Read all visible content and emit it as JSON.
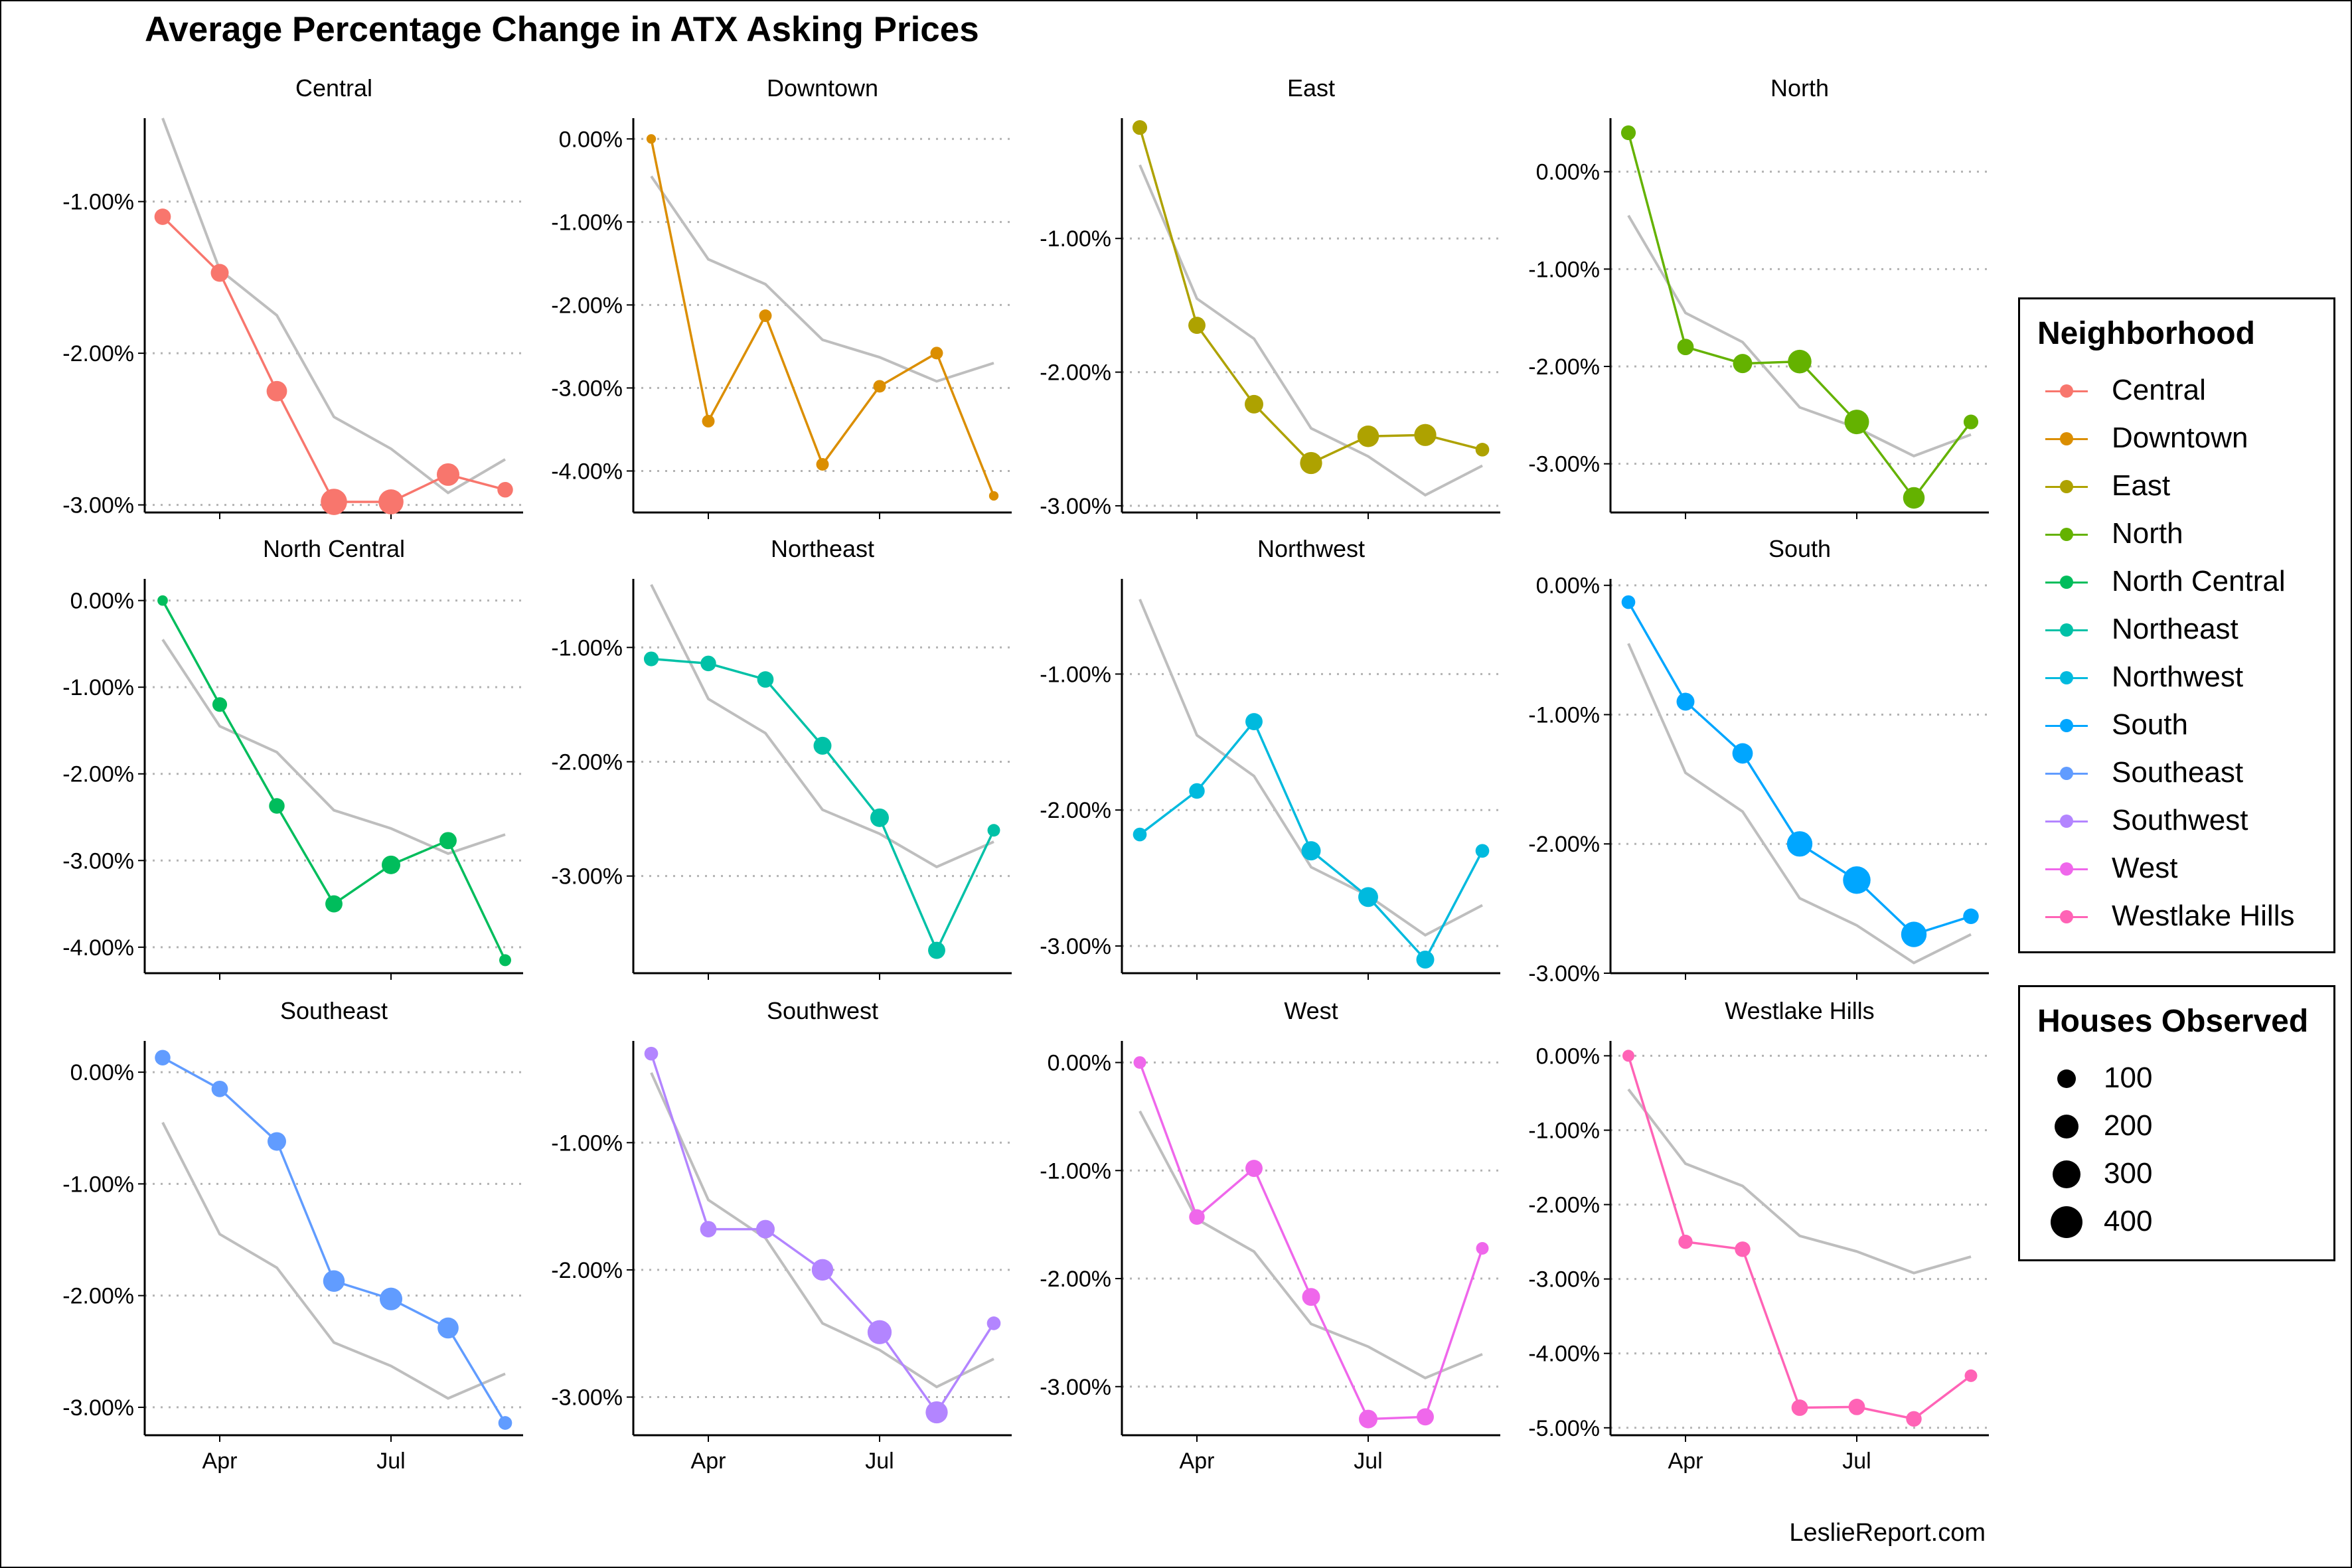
{
  "title": "Average Percentage Change in ATX Asking Prices",
  "caption": "LeslieReport.com",
  "legend_neighborhood": {
    "title": "Neighborhood",
    "items": [
      {
        "label": "Central",
        "color": "#F8766D"
      },
      {
        "label": "Downtown",
        "color": "#DB8E00"
      },
      {
        "label": "East",
        "color": "#AEA200"
      },
      {
        "label": "North",
        "color": "#64B200"
      },
      {
        "label": "North Central",
        "color": "#00BD5C"
      },
      {
        "label": "Northeast",
        "color": "#00C1A7"
      },
      {
        "label": "Northwest",
        "color": "#00BADE"
      },
      {
        "label": "South",
        "color": "#00A6FF"
      },
      {
        "label": "Southeast",
        "color": "#619CFF"
      },
      {
        "label": "Southwest",
        "color": "#B385FF"
      },
      {
        "label": "West",
        "color": "#EF67EB"
      },
      {
        "label": "Westlake Hills",
        "color": "#FF63B6"
      }
    ]
  },
  "legend_size": {
    "title": "Houses Observed",
    "items": [
      {
        "label": "100",
        "value": 100
      },
      {
        "label": "200",
        "value": 200
      },
      {
        "label": "300",
        "value": 300
      },
      {
        "label": "400",
        "value": 400
      }
    ]
  },
  "chart_data": {
    "type": "line",
    "x_labels": [
      "Apr",
      "Jul"
    ],
    "x": [
      "Mar",
      "Apr",
      "May",
      "Jun",
      "Jul",
      "Aug",
      "Sep"
    ],
    "reference_line": {
      "color": "#BEBEBE",
      "values": [
        -0.45,
        -1.45,
        -1.75,
        -2.42,
        -2.63,
        -2.92,
        -2.7
      ]
    },
    "panels": [
      {
        "name": "Central",
        "color": "#F8766D",
        "ylim": [
          -3.05,
          -0.45
        ],
        "yticks": [
          -1,
          -2,
          -3
        ],
        "values": [
          -1.1,
          -1.47,
          -2.25,
          -2.98,
          -2.98,
          -2.8,
          -2.9
        ],
        "sizes": [
          70,
          90,
          130,
          250,
          220,
          170,
          60
        ]
      },
      {
        "name": "Downtown",
        "color": "#DB8E00",
        "ylim": [
          -4.5,
          0.25
        ],
        "yticks": [
          0,
          -1,
          -2,
          -3,
          -4
        ],
        "values": [
          0.0,
          -3.4,
          -2.13,
          -3.92,
          -2.98,
          -2.58,
          -4.3
        ],
        "sizes": [
          10,
          30,
          30,
          30,
          30,
          30,
          10
        ]
      },
      {
        "name": "East",
        "color": "#AEA200",
        "ylim": [
          -3.05,
          -0.1
        ],
        "yticks": [
          -1,
          -2,
          -3
        ],
        "values": [
          -0.17,
          -1.65,
          -2.24,
          -2.68,
          -2.48,
          -2.47,
          -2.58
        ],
        "sizes": [
          50,
          80,
          100,
          160,
          150,
          160,
          40
        ]
      },
      {
        "name": "North",
        "color": "#64B200",
        "ylim": [
          -3.5,
          0.55
        ],
        "yticks": [
          0,
          -1,
          -2,
          -3
        ],
        "values": [
          0.4,
          -1.8,
          -1.97,
          -1.95,
          -2.57,
          -3.35,
          -2.57
        ],
        "sizes": [
          50,
          70,
          110,
          190,
          210,
          150,
          50
        ]
      },
      {
        "name": "North Central",
        "color": "#00BD5C",
        "ylim": [
          -4.3,
          0.25
        ],
        "yticks": [
          0,
          -1,
          -2,
          -3,
          -4
        ],
        "values": [
          0.0,
          -1.2,
          -2.37,
          -3.5,
          -3.05,
          -2.77,
          -4.15
        ],
        "sizes": [
          15,
          50,
          60,
          80,
          100,
          80,
          25
        ]
      },
      {
        "name": "Northeast",
        "color": "#00C1A7",
        "ylim": [
          -3.85,
          -0.4
        ],
        "yticks": [
          -1,
          -2,
          -3
        ],
        "values": [
          -1.1,
          -1.14,
          -1.28,
          -1.86,
          -2.49,
          -3.65,
          -2.6
        ],
        "sizes": [
          50,
          60,
          70,
          90,
          100,
          80,
          30
        ]
      },
      {
        "name": "Northwest",
        "color": "#00BADE",
        "ylim": [
          -3.2,
          -0.3
        ],
        "yticks": [
          -1,
          -2,
          -3
        ],
        "values": [
          -2.18,
          -1.86,
          -1.35,
          -2.3,
          -2.64,
          -3.1,
          -2.3
        ],
        "sizes": [
          40,
          60,
          80,
          110,
          120,
          90,
          40
        ]
      },
      {
        "name": "South",
        "color": "#00A6FF",
        "ylim": [
          -3.0,
          0.05
        ],
        "yticks": [
          0,
          -1,
          -2,
          -3
        ],
        "values": [
          -0.13,
          -0.9,
          -1.3,
          -2.0,
          -2.28,
          -2.7,
          -2.56
        ],
        "sizes": [
          40,
          90,
          130,
          230,
          280,
          230,
          60
        ]
      },
      {
        "name": "Southeast",
        "color": "#619CFF",
        "ylim": [
          -3.25,
          0.28
        ],
        "yticks": [
          0,
          -1,
          -2,
          -3
        ],
        "values": [
          0.13,
          -0.15,
          -0.62,
          -1.87,
          -2.03,
          -2.29,
          -3.14
        ],
        "sizes": [
          60,
          70,
          100,
          150,
          170,
          140,
          40
        ]
      },
      {
        "name": "Southwest",
        "color": "#B385FF",
        "ylim": [
          -3.3,
          -0.2
        ],
        "yticks": [
          -1,
          -2,
          -3
        ],
        "values": [
          -0.3,
          -1.68,
          -1.68,
          -2.0,
          -2.49,
          -3.12,
          -2.42
        ],
        "sizes": [
          40,
          70,
          100,
          150,
          200,
          160,
          40
        ]
      },
      {
        "name": "West",
        "color": "#EF67EB",
        "ylim": [
          -3.45,
          0.2
        ],
        "yticks": [
          0,
          -1,
          -2,
          -3
        ],
        "values": [
          0.0,
          -1.43,
          -0.98,
          -2.17,
          -3.3,
          -3.28,
          -1.72
        ],
        "sizes": [
          30,
          60,
          80,
          90,
          100,
          80,
          30
        ]
      },
      {
        "name": "Westlake Hills",
        "color": "#FF63B6",
        "ylim": [
          -5.1,
          0.2
        ],
        "yticks": [
          0,
          -1,
          -2,
          -3,
          -4,
          -5
        ],
        "values": [
          0.0,
          -2.5,
          -2.6,
          -4.73,
          -4.72,
          -4.88,
          -4.3
        ],
        "sizes": [
          25,
          45,
          60,
          70,
          70,
          60,
          30
        ]
      }
    ]
  }
}
